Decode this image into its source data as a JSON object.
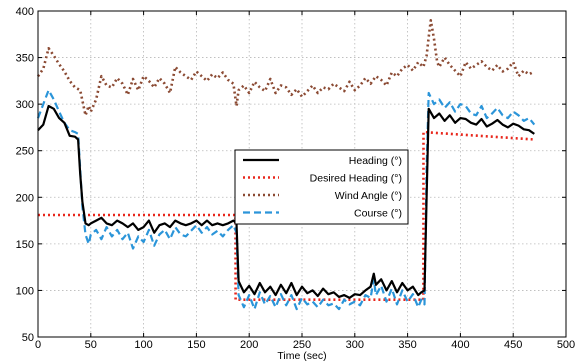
{
  "chart_data": {
    "type": "line",
    "title": "",
    "xlabel": "Time (sec)",
    "ylabel": "",
    "xlim": [
      0,
      500
    ],
    "ylim": [
      50,
      400
    ],
    "xticks": [
      0,
      50,
      100,
      150,
      200,
      250,
      300,
      350,
      400,
      450,
      500
    ],
    "yticks": [
      50,
      100,
      150,
      200,
      250,
      300,
      350,
      400
    ],
    "grid": true,
    "legend_position": "center-right",
    "series": [
      {
        "name": "Heading (°)",
        "color": "#000000",
        "style": "solid",
        "x": [
          0,
          5,
          10,
          15,
          20,
          25,
          30,
          35,
          38,
          40,
          42,
          45,
          48,
          50,
          55,
          60,
          65,
          70,
          75,
          80,
          85,
          90,
          95,
          100,
          105,
          110,
          115,
          120,
          125,
          130,
          135,
          140,
          145,
          150,
          155,
          160,
          165,
          170,
          175,
          180,
          185,
          188,
          190,
          195,
          200,
          205,
          210,
          215,
          220,
          225,
          230,
          235,
          240,
          245,
          250,
          255,
          260,
          265,
          270,
          275,
          280,
          285,
          290,
          295,
          300,
          305,
          310,
          315,
          318,
          320,
          325,
          330,
          335,
          340,
          345,
          350,
          355,
          360,
          363,
          366,
          368,
          370,
          375,
          380,
          385,
          390,
          395,
          400,
          405,
          410,
          415,
          420,
          425,
          430,
          435,
          440,
          445,
          450,
          455,
          460,
          465,
          470
        ],
        "y": [
          272,
          278,
          298,
          295,
          285,
          280,
          266,
          265,
          262,
          225,
          195,
          172,
          170,
          172,
          175,
          178,
          172,
          170,
          175,
          172,
          168,
          172,
          165,
          168,
          175,
          162,
          170,
          172,
          168,
          175,
          172,
          170,
          172,
          175,
          170,
          175,
          170,
          172,
          170,
          172,
          175,
          172,
          110,
          98,
          105,
          96,
          108,
          98,
          104,
          95,
          106,
          97,
          108,
          95,
          104,
          97,
          100,
          94,
          102,
          96,
          98,
          93,
          95,
          92,
          96,
          95,
          100,
          104,
          118,
          106,
          112,
          100,
          110,
          98,
          108,
          100,
          104,
          95,
          98,
          100,
          200,
          295,
          285,
          290,
          282,
          288,
          280,
          285,
          284,
          280,
          278,
          284,
          276,
          279,
          283,
          278,
          275,
          279,
          277,
          273,
          272,
          268
        ]
      },
      {
        "name": "Desired Heading (°)",
        "color": "#e8261b",
        "style": "dotted",
        "x": [
          0,
          45,
          45.1,
          187,
          187.1,
          365,
          365.1,
          470
        ],
        "y": [
          181,
          181,
          181,
          181,
          90,
          90,
          270,
          262
        ]
      },
      {
        "name": "Wind Angle (°)",
        "color": "#8b4a33",
        "style": "dotted",
        "x": [
          0,
          5,
          10,
          15,
          20,
          25,
          30,
          35,
          40,
          45,
          48,
          50,
          55,
          60,
          65,
          70,
          75,
          80,
          85,
          90,
          95,
          100,
          105,
          110,
          115,
          120,
          125,
          130,
          135,
          140,
          145,
          150,
          155,
          160,
          165,
          170,
          175,
          180,
          185,
          188,
          190,
          195,
          200,
          205,
          210,
          215,
          220,
          225,
          230,
          235,
          240,
          245,
          250,
          255,
          260,
          265,
          270,
          275,
          280,
          285,
          290,
          295,
          300,
          305,
          310,
          315,
          320,
          325,
          330,
          335,
          340,
          345,
          350,
          355,
          360,
          365,
          368,
          370,
          372,
          375,
          378,
          380,
          385,
          390,
          395,
          400,
          405,
          410,
          415,
          420,
          425,
          430,
          435,
          440,
          445,
          450,
          455,
          460,
          465,
          470
        ],
        "y": [
          330,
          338,
          360,
          352,
          343,
          335,
          325,
          318,
          315,
          288,
          298,
          292,
          305,
          330,
          320,
          318,
          328,
          322,
          310,
          327,
          315,
          330,
          325,
          318,
          328,
          322,
          312,
          340,
          334,
          330,
          326,
          335,
          330,
          325,
          332,
          328,
          334,
          326,
          322,
          298,
          315,
          320,
          312,
          324,
          318,
          314,
          327,
          312,
          320,
          318,
          310,
          316,
          308,
          314,
          320,
          312,
          318,
          316,
          322,
          318,
          314,
          324,
          315,
          320,
          328,
          322,
          330,
          326,
          320,
          334,
          330,
          338,
          342,
          336,
          345,
          340,
          352,
          372,
          390,
          370,
          345,
          340,
          350,
          342,
          336,
          330,
          345,
          338,
          342,
          346,
          340,
          336,
          342,
          335,
          338,
          345,
          330,
          336,
          332,
          335
        ]
      },
      {
        "name": "Course (°)",
        "color": "#2b95d9",
        "style": "dashed",
        "x": [
          0,
          5,
          10,
          15,
          20,
          25,
          30,
          35,
          38,
          40,
          42,
          45,
          48,
          50,
          55,
          60,
          65,
          70,
          75,
          80,
          85,
          90,
          95,
          100,
          105,
          110,
          115,
          120,
          125,
          130,
          135,
          140,
          145,
          150,
          155,
          160,
          165,
          170,
          175,
          180,
          185,
          188,
          190,
          195,
          200,
          205,
          210,
          215,
          220,
          225,
          230,
          235,
          240,
          245,
          250,
          255,
          260,
          265,
          270,
          275,
          280,
          285,
          290,
          295,
          300,
          305,
          310,
          315,
          318,
          320,
          325,
          330,
          335,
          340,
          345,
          350,
          355,
          360,
          363,
          366,
          368,
          370,
          375,
          380,
          385,
          390,
          395,
          400,
          405,
          410,
          415,
          420,
          425,
          430,
          435,
          440,
          445,
          450,
          455,
          460,
          465,
          470
        ],
        "y": [
          285,
          300,
          315,
          305,
          292,
          280,
          272,
          270,
          268,
          230,
          190,
          160,
          150,
          160,
          165,
          155,
          168,
          158,
          165,
          155,
          162,
          145,
          158,
          152,
          165,
          148,
          160,
          165,
          155,
          168,
          160,
          158,
          164,
          170,
          162,
          168,
          160,
          164,
          158,
          165,
          170,
          162,
          95,
          82,
          95,
          80,
          98,
          85,
          94,
          82,
          96,
          84,
          95,
          80,
          92,
          85,
          88,
          82,
          90,
          84,
          86,
          80,
          90,
          85,
          88,
          84,
          95,
          92,
          112,
          95,
          105,
          88,
          102,
          85,
          100,
          88,
          96,
          82,
          90,
          85,
          230,
          312,
          300,
          305,
          296,
          302,
          292,
          300,
          298,
          290,
          288,
          298,
          285,
          290,
          296,
          288,
          285,
          292,
          288,
          282,
          285,
          278
        ]
      }
    ]
  }
}
